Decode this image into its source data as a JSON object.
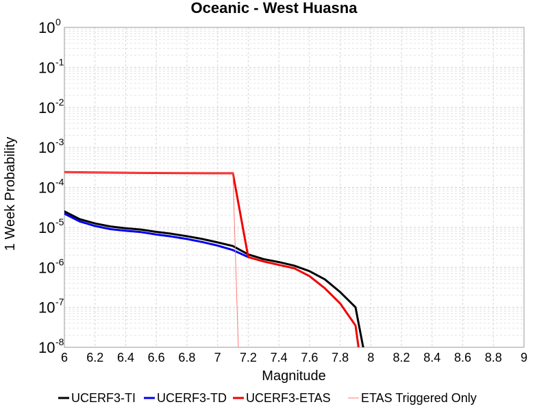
{
  "chart_data": {
    "type": "line",
    "title": "Oceanic - West Huasna",
    "xlabel": "Magnitude",
    "ylabel": "1 Week Probability",
    "xlim": [
      6,
      9
    ],
    "ylim": [
      1e-08,
      1
    ],
    "yscale": "log",
    "grid": true,
    "legend_position": "bottom",
    "x_ticks": [
      "6",
      "6.2",
      "6.4",
      "6.6",
      "6.8",
      "7",
      "7.2",
      "7.4",
      "7.6",
      "7.8",
      "8",
      "8.2",
      "8.4",
      "8.6",
      "8.8",
      "9"
    ],
    "y_ticks": [
      {
        "base": "10",
        "exp": "0"
      },
      {
        "base": "10",
        "exp": "-1"
      },
      {
        "base": "10",
        "exp": "-2"
      },
      {
        "base": "10",
        "exp": "-3"
      },
      {
        "base": "10",
        "exp": "-4"
      },
      {
        "base": "10",
        "exp": "-5"
      },
      {
        "base": "10",
        "exp": "-6"
      },
      {
        "base": "10",
        "exp": "-7"
      },
      {
        "base": "10",
        "exp": "-8"
      }
    ],
    "series": [
      {
        "name": "UCERF3-TI",
        "color": "#000000",
        "width": 3,
        "x": [
          6.0,
          6.1,
          6.2,
          6.3,
          6.4,
          6.5,
          6.6,
          6.7,
          6.8,
          6.9,
          7.0,
          7.1,
          7.2,
          7.3,
          7.4,
          7.5,
          7.6,
          7.7,
          7.8,
          7.9,
          7.95
        ],
        "y": [
          2.5e-05,
          1.6e-05,
          1.25e-05,
          1.05e-05,
          9.5e-06,
          8.8e-06,
          7.7e-06,
          6.9e-06,
          6e-06,
          5.1e-06,
          4.2e-06,
          3.4e-06,
          2.1e-06,
          1.6e-06,
          1.35e-06,
          1.1e-06,
          8e-07,
          5e-07,
          2.4e-07,
          1e-07,
          1e-08
        ]
      },
      {
        "name": "UCERF3-TD",
        "color": "#0000ee",
        "width": 3,
        "x": [
          6.0,
          6.1,
          6.2,
          6.3,
          6.4,
          6.5,
          6.6,
          6.7,
          6.8,
          6.9,
          7.0,
          7.1,
          7.2
        ],
        "y": [
          2.2e-05,
          1.4e-05,
          1.08e-05,
          9e-06,
          8.2e-06,
          7.6e-06,
          6.6e-06,
          5.9e-06,
          5.1e-06,
          4.3e-06,
          3.5e-06,
          2.7e-06,
          1.8e-06
        ]
      },
      {
        "name": "UCERF3-ETAS",
        "color": "#ee0000",
        "width": 3,
        "x": [
          6.0,
          6.5,
          7.0,
          7.1,
          7.2,
          7.3,
          7.4,
          7.5,
          7.6,
          7.7,
          7.8,
          7.9,
          7.92
        ],
        "y": [
          0.00024,
          0.00023,
          0.000225,
          0.000225,
          1.8e-06,
          1.4e-06,
          1.15e-06,
          9.5e-07,
          6e-07,
          3e-07,
          1.25e-07,
          3.5e-08,
          1e-08
        ]
      },
      {
        "name": "ETAS Triggered Only",
        "color": "#ff7777",
        "width": 1,
        "x": [
          6.0,
          7.1,
          7.135
        ],
        "y": [
          0.00024,
          0.000225,
          1e-08
        ]
      }
    ]
  }
}
